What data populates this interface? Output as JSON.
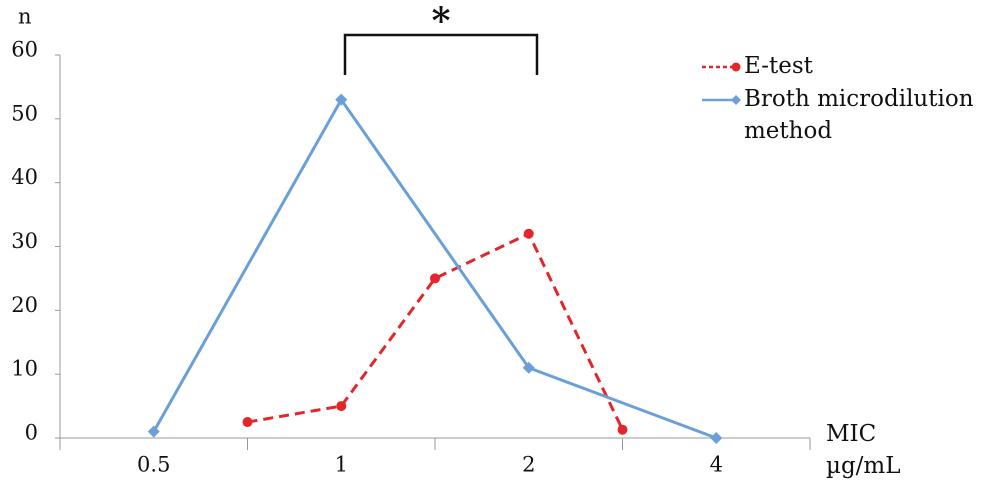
{
  "chart_data": {
    "type": "line",
    "y_label": "n",
    "x_label": "MIC µg/mL",
    "annotation": "*",
    "categories": [
      "0.5",
      null,
      "1",
      null,
      "2",
      null,
      "4"
    ],
    "series": [
      {
        "name": "E-test",
        "color": "#e3262b",
        "dashed": true,
        "marker": "circle",
        "values": [
          null,
          2.5,
          5,
          25,
          32,
          1.3,
          null
        ]
      },
      {
        "name": "Broth microdilution method",
        "color": "#6a9fd8",
        "dashed": false,
        "marker": "diamond",
        "connect_gaps": true,
        "values": [
          1,
          null,
          53,
          null,
          11,
          null,
          0
        ]
      }
    ],
    "ylim": [
      0,
      60
    ],
    "yticks": [
      0,
      10,
      20,
      30,
      40,
      50,
      60
    ],
    "grid": false,
    "legend": "upper right"
  }
}
